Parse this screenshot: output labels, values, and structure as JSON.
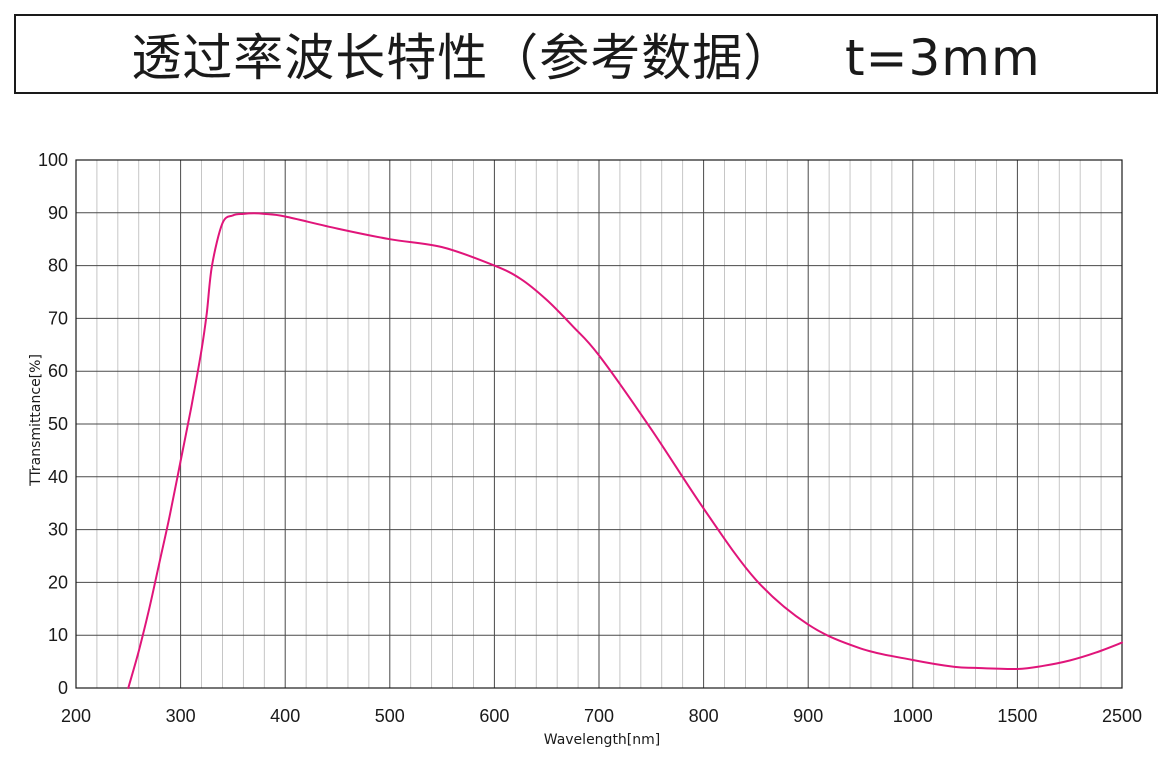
{
  "title": "透过率波长特性（参考数据）   t=3mm",
  "chart_data": {
    "type": "line",
    "xlabel": "Wavelength[nm]",
    "ylabel": "TTransmittance[%]",
    "x_ticks": [
      "200",
      "300",
      "400",
      "500",
      "600",
      "700",
      "800",
      "900",
      "1000",
      "1500",
      "2500"
    ],
    "x_tick_values": [
      200,
      300,
      400,
      500,
      600,
      700,
      800,
      900,
      1000,
      1500,
      2500
    ],
    "y_ticks": [
      "0",
      "10",
      "20",
      "30",
      "40",
      "50",
      "60",
      "70",
      "80",
      "90",
      "100"
    ],
    "ylim": [
      0,
      100
    ],
    "grid": true,
    "series": [
      {
        "color": "#e0157a",
        "x": [
          250,
          260,
          270,
          280,
          290,
          300,
          310,
          320,
          325,
          330,
          340,
          350,
          360,
          370,
          380,
          400,
          450,
          500,
          550,
          600,
          625,
          650,
          675,
          700,
          750,
          800,
          850,
          900,
          950,
          1000,
          1200,
          1300,
          1500,
          1750,
          2000,
          2250,
          2500
        ],
        "y": [
          0,
          7,
          15,
          24,
          33,
          43,
          53,
          64,
          71,
          80,
          88,
          89.5,
          89.8,
          89.9,
          89.8,
          89.3,
          87,
          85,
          83.5,
          80,
          77.5,
          73.5,
          68.5,
          63,
          49,
          34,
          20.5,
          12,
          7.5,
          5.3,
          4,
          3.8,
          3.6,
          4.2,
          5.2,
          6.7,
          8.6
        ]
      }
    ]
  }
}
